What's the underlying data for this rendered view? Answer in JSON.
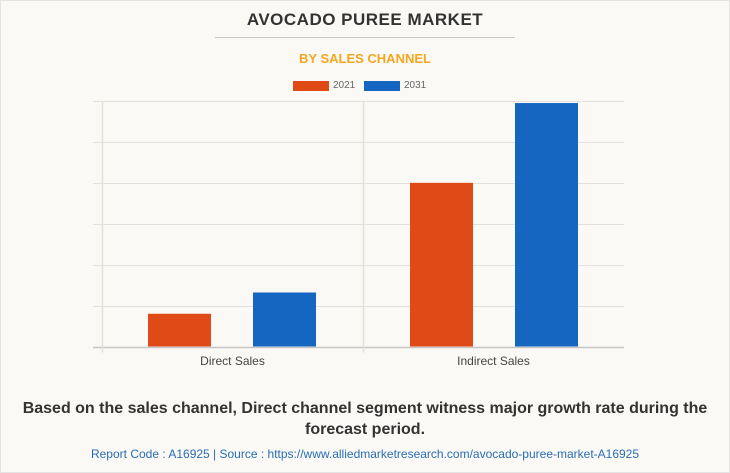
{
  "header": {
    "title": "AVOCADO PUREE MARKET",
    "subtitle": "BY SALES CHANNEL"
  },
  "colors": {
    "series_2021": "#e04a17",
    "series_2031": "#1466c1",
    "subtitle": "#f5a623",
    "source_link": "#2a6db5"
  },
  "chart_data": {
    "type": "bar",
    "title": "AVOCADO PUREE MARKET",
    "subtitle": "BY SALES CHANNEL",
    "xlabel": "",
    "ylabel": "",
    "categories": [
      "Direct Sales",
      "Indirect Sales"
    ],
    "series": [
      {
        "name": "2021",
        "values": [
          0.8,
          4.0
        ]
      },
      {
        "name": "2031",
        "values": [
          1.32,
          5.95
        ]
      }
    ],
    "ylim": [
      0,
      6
    ],
    "y_gridlines": [
      0,
      1,
      2,
      3,
      4,
      5,
      6
    ],
    "y_tick_labels_shown": false,
    "units_note": "relative units (no axis values shown)",
    "grid": true,
    "legend_position": "top-center"
  },
  "footer": {
    "note": "Based on the sales channel, Direct channel segment witness major growth rate during the forecast period.",
    "source": "Report Code : A16925  |  Source : https://www.alliedmarketresearch.com/avocado-puree-market-A16925"
  }
}
